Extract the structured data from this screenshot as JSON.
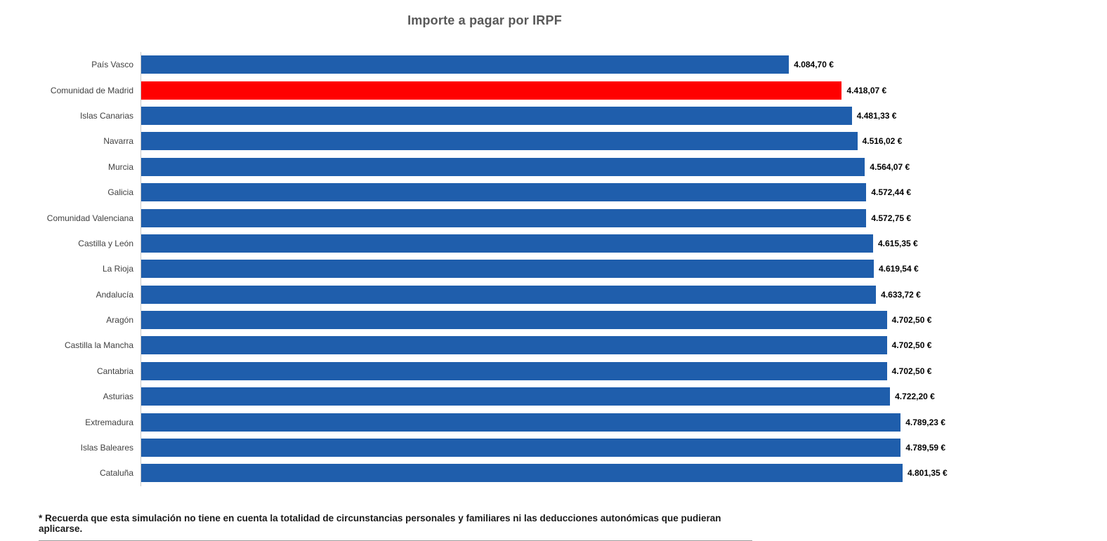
{
  "chart_data": {
    "type": "bar",
    "orientation": "horizontal",
    "title": "Importe a pagar por IRPF",
    "categories": [
      "País Vasco",
      "Comunidad de Madrid",
      "Islas Canarias",
      "Navarra",
      "Murcia",
      "Galicia",
      "Comunidad Valenciana",
      "Castilla y León",
      "La Rioja",
      "Andalucía",
      "Aragón",
      "Castilla la Mancha",
      "Cantabria",
      "Asturias",
      "Extremadura",
      "Islas Baleares",
      "Cataluña"
    ],
    "values": [
      4084.7,
      4418.07,
      4481.33,
      4516.02,
      4564.07,
      4572.44,
      4572.75,
      4615.35,
      4619.54,
      4633.72,
      4702.5,
      4702.5,
      4702.5,
      4722.2,
      4789.23,
      4789.59,
      4801.35
    ],
    "value_labels": [
      "4.084,70 €",
      "4.418,07 €",
      "4.481,33 €",
      "4.516,02 €",
      "4.564,07 €",
      "4.572,44 €",
      "4.572,75 €",
      "4.615,35 €",
      "4.619,54 €",
      "4.633,72 €",
      "4.702,50 €",
      "4.702,50 €",
      "4.702,50 €",
      "4.722,20 €",
      "4.789,23 €",
      "4.789,59 €",
      "4.801,35 €"
    ],
    "bar_color": "#1F5EAC",
    "highlight_color": "#FF0000",
    "highlight_index": 1,
    "xlim": [
      0,
      4801.35
    ],
    "grid": false,
    "legend": "none"
  },
  "footnote": "* Recuerda que esta simulación no tiene en cuenta la totalidad de circunstancias personales y familiares ni las deducciones autonómicas que pudieran aplicarse."
}
